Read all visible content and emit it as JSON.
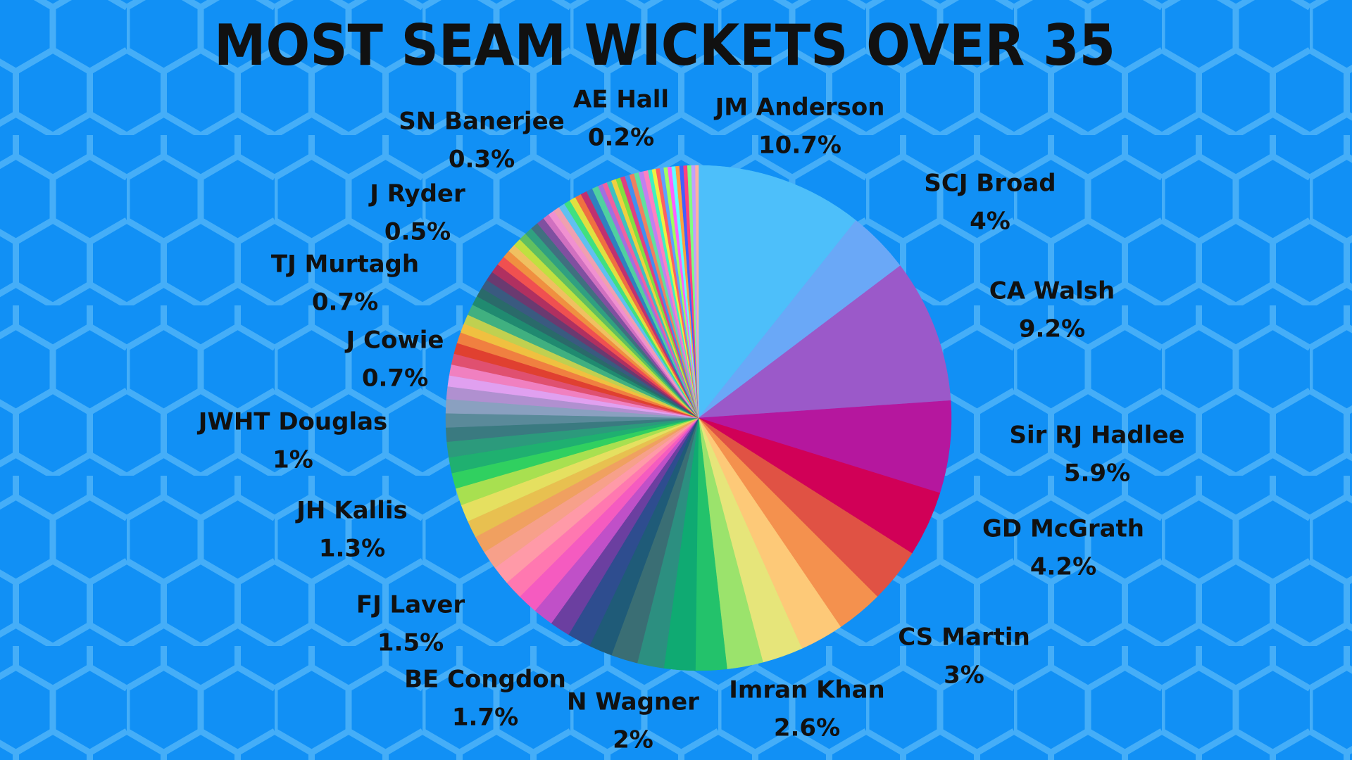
{
  "chart_data": {
    "type": "pie",
    "title": "MOST SEAM WICKETS OVER 35",
    "categories": [
      "JM Anderson",
      "SCJ Broad",
      "CA Walsh",
      "Sir RJ Hadlee",
      "GD McGrath",
      null,
      "CS Martin",
      null,
      "Imran Khan",
      null,
      "N Wagner",
      null,
      "BE Congdon",
      null,
      "FJ Laver",
      null,
      "JH Kallis",
      null,
      null,
      null,
      null,
      null,
      null,
      null,
      null,
      null,
      "JWHT Douglas",
      null,
      null,
      null,
      null,
      null,
      null,
      "J Cowie",
      null,
      null,
      null,
      null,
      null,
      null,
      "TJ Murtagh",
      null,
      null,
      null,
      null,
      null,
      null,
      null,
      null,
      null,
      null,
      null,
      null,
      "J Ryder",
      null,
      null,
      null,
      null,
      null,
      null,
      null,
      null,
      null,
      null,
      null,
      null,
      null,
      null,
      null,
      null,
      null,
      null,
      null,
      null,
      "SN Banerjee",
      null,
      null,
      null,
      null,
      null,
      null,
      null,
      null,
      null,
      null,
      null,
      null,
      "AE Hall"
    ],
    "values": [
      10.7,
      4,
      9.2,
      5.9,
      4.2,
      3.5,
      3,
      2.8,
      2.6,
      2.3,
      2,
      2,
      1.7,
      1.7,
      1.5,
      1.5,
      1.3,
      1.3,
      1.3,
      1.2,
      1.2,
      1.2,
      1.1,
      1.1,
      1.1,
      1.1,
      1,
      1,
      1,
      0.9,
      0.9,
      0.9,
      0.8,
      0.7,
      0.7,
      0.7,
      0.7,
      0.7,
      0.6,
      0.6,
      0.7,
      0.6,
      0.6,
      0.6,
      0.6,
      0.6,
      0.6,
      0.5,
      0.5,
      0.5,
      0.5,
      0.5,
      0.5,
      0.5,
      0.4,
      0.4,
      0.4,
      0.4,
      0.4,
      0.4,
      0.4,
      0.4,
      0.4,
      0.4,
      0.3,
      0.3,
      0.3,
      0.3,
      0.3,
      0.3,
      0.3,
      0.3,
      0.3,
      0.3,
      0.3,
      0.25,
      0.25,
      0.25,
      0.25,
      0.25,
      0.25,
      0.25,
      0.25,
      0.25,
      0.25,
      0.25,
      0.25,
      0.2
    ],
    "value_labels": [
      "10.7%",
      "4%",
      "9.2%",
      "5.9%",
      "4.2%",
      null,
      "3%",
      null,
      "2.6%",
      null,
      "2%",
      null,
      "1.7%",
      null,
      "1.5%",
      null,
      "1.3%",
      null,
      null,
      null,
      null,
      null,
      null,
      null,
      null,
      null,
      "1%",
      null,
      null,
      null,
      null,
      null,
      null,
      "0.7%",
      null,
      null,
      null,
      null,
      null,
      null,
      "0.7%",
      null,
      null,
      null,
      null,
      null,
      null,
      null,
      null,
      null,
      null,
      null,
      null,
      "0.5%",
      null,
      null,
      null,
      null,
      null,
      null,
      null,
      null,
      null,
      null,
      null,
      null,
      null,
      null,
      null,
      null,
      null,
      null,
      null,
      null,
      "0.3%",
      null,
      null,
      null,
      null,
      null,
      null,
      null,
      null,
      null,
      null,
      null,
      null,
      "0.2%"
    ],
    "colors": [
      "#4dbffa",
      "#6aa8f7",
      "#9b59c9",
      "#b5179e",
      "#d10057",
      "#e05244",
      "#f4914e",
      "#fdc978",
      "#e6e57a",
      "#9be36c",
      "#23c26b",
      "#0faa72",
      "#2c8f80",
      "#3a6e74",
      "#1f5b78",
      "#2e4d8f",
      "#6b3fa0",
      "#c050c8",
      "#f55bc0",
      "#ff78b0",
      "#ff9aa8",
      "#f7a08a",
      "#f0a060",
      "#e8c050",
      "#e5e060",
      "#a8e050",
      "#30d060",
      "#1fb070",
      "#2c9a7c",
      "#3a7a80",
      "#5a8a9a",
      "#8aa0c0",
      "#b090d0",
      "#e0a0f0",
      "#f080c0",
      "#e05070",
      "#e04030",
      "#f08040",
      "#f0c040",
      "#c0d050",
      "#40b080",
      "#208a70",
      "#2a6a6a",
      "#3a5a80",
      "#6a3a70",
      "#b03060",
      "#f05050",
      "#f09040",
      "#f0c060",
      "#c0e040",
      "#60c060",
      "#30a080",
      "#407080",
      "#8050a0",
      "#d070c0",
      "#f090d0",
      "#f0a0b0",
      "#60c0f0",
      "#40e080",
      "#e0e040",
      "#f07040",
      "#c03070",
      "#3080c0",
      "#50d0a0",
      "#a070e0",
      "#f060a0",
      "#40c0c0",
      "#f0d040",
      "#80e040",
      "#e04080",
      "#4090f0",
      "#f08060",
      "#60e0a0",
      "#c080f0",
      "#ff80c0",
      "#40f0c0",
      "#f0f040",
      "#ff6060",
      "#60a0ff",
      "#a0ff60",
      "#ff60ff",
      "#60ffff",
      "#ffa040",
      "#4060ff",
      "#ff4080",
      "#80ff80",
      "#c0a0ff",
      "#ffb0a0"
    ]
  }
}
